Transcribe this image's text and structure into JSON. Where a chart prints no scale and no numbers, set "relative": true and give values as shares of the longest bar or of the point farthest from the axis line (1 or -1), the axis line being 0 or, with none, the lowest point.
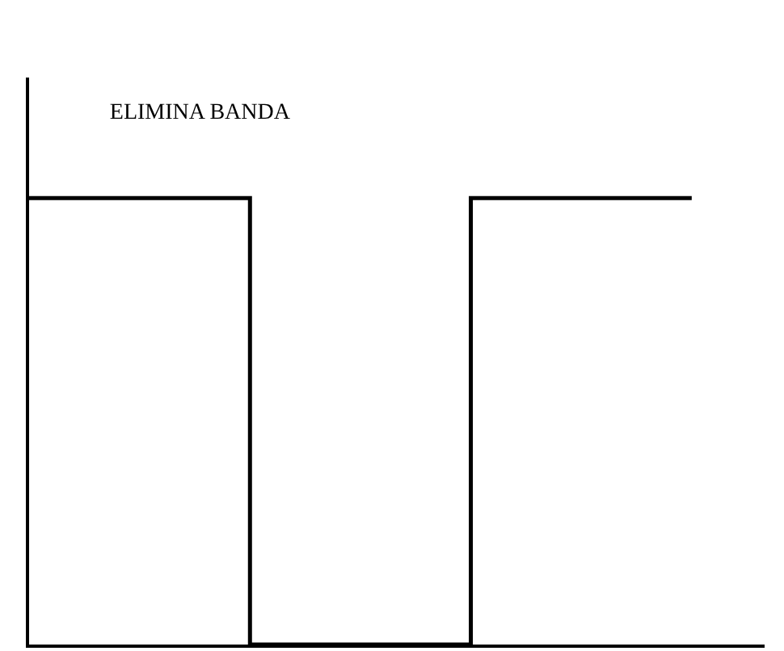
{
  "chart_data": {
    "type": "step",
    "title": "ELIMINA BANDA",
    "relative": true,
    "categories": [
      null,
      null,
      null,
      null
    ],
    "series": [
      {
        "color": "#000000",
        "values": [
          1,
          0,
          1,
          1
        ]
      }
    ],
    "marker": "none",
    "line_style": "solid"
  }
}
